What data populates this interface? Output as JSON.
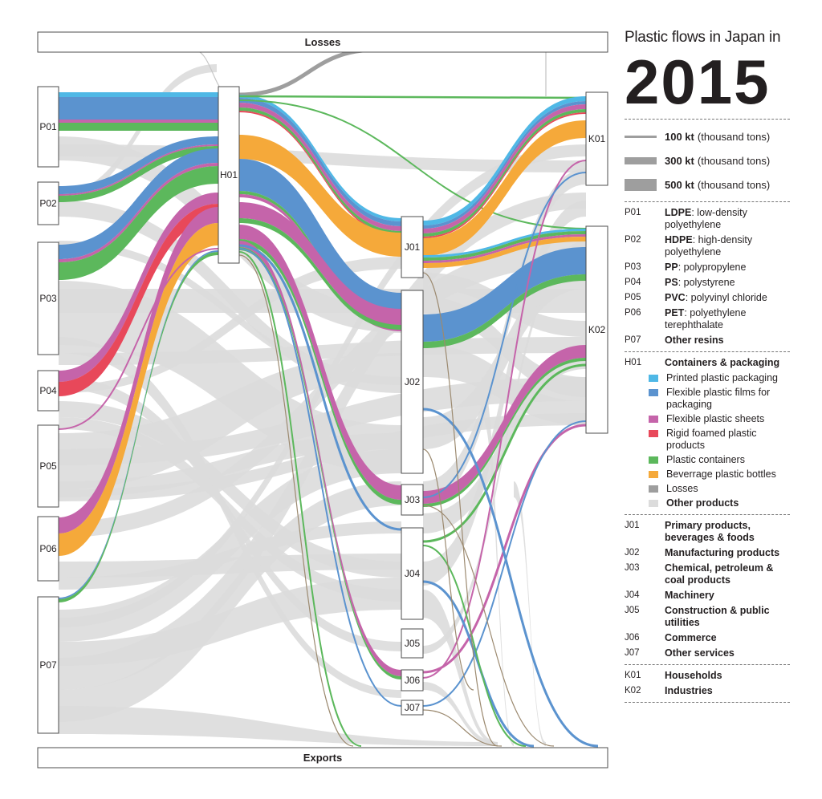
{
  "labels": {
    "losses": "Losses",
    "exports": "Exports"
  },
  "nodes": {
    "P01": "P01",
    "P02": "P02",
    "P03": "P03",
    "P04": "P04",
    "P05": "P05",
    "P06": "P06",
    "P07": "P07",
    "H01": "H01",
    "J01": "J01",
    "J02": "J02",
    "J03": "J03",
    "J04": "J04",
    "J05": "J05",
    "J06": "J06",
    "J07": "J07",
    "K01": "K01",
    "K02": "K02"
  },
  "colors": {
    "printed": "#4fb8e6",
    "flexible": "#5b93cf",
    "sheets": "#c564aa",
    "foamed": "#e8485a",
    "containers": "#5cb85c",
    "bottles": "#f5a93a",
    "losses": "#9e9e9e",
    "other": "#dcdcdc"
  },
  "legend": {
    "title": "Plastic flows in Japan in",
    "year": "2015",
    "scale": [
      {
        "value": "100 kt",
        "unit": "(thousand tons)"
      },
      {
        "value": "300 kt",
        "unit": "(thousand tons)"
      },
      {
        "value": "500 kt",
        "unit": "(thousand tons)"
      }
    ],
    "resins": [
      {
        "code": "P01",
        "abbr": "LDPE",
        "desc": ": low-density polyethylene"
      },
      {
        "code": "P02",
        "abbr": "HDPE",
        "desc": ": high-density polyethylene"
      },
      {
        "code": "P03",
        "abbr": "PP",
        "desc": ": polypropylene"
      },
      {
        "code": "P04",
        "abbr": "PS",
        "desc": ": polystyrene"
      },
      {
        "code": "P05",
        "abbr": "PVC",
        "desc": ": polyvinyl chloride"
      },
      {
        "code": "P06",
        "abbr": "PET",
        "desc": ": polyethylene terephthalate"
      },
      {
        "code": "P07",
        "abbr": "Other resins",
        "desc": ""
      }
    ],
    "h01": {
      "code": "H01",
      "label": "Containers & packaging"
    },
    "products": [
      {
        "label": "Printed plastic packaging",
        "color": "#4fb8e6"
      },
      {
        "label": "Flexible plastic films for packaging",
        "color": "#5b93cf"
      },
      {
        "label": "Flexible plastic sheets",
        "color": "#c564aa"
      },
      {
        "label": "Rigid foamed plastic products",
        "color": "#e8485a"
      },
      {
        "label": "Plastic containers",
        "color": "#5cb85c"
      },
      {
        "label": "Beverrage plastic bottles",
        "color": "#f5a93a"
      },
      {
        "label": "Losses",
        "color": "#9e9e9e"
      }
    ],
    "other_products": {
      "label": "Other products",
      "color": "#dcdcdc"
    },
    "sectors": [
      {
        "code": "J01",
        "label": "Primary products, beverages & foods"
      },
      {
        "code": "J02",
        "label": "Manufacturing products"
      },
      {
        "code": "J03",
        "label": "Chemical, petroleum & coal products"
      },
      {
        "code": "J04",
        "label": "Machinery"
      },
      {
        "code": "J05",
        "label": "Construction & public utilities"
      },
      {
        "code": "J06",
        "label": "Commerce"
      },
      {
        "code": "J07",
        "label": "Other services"
      }
    ],
    "final": [
      {
        "code": "K01",
        "label": "Households"
      },
      {
        "code": "K02",
        "label": "Industries"
      }
    ]
  }
}
